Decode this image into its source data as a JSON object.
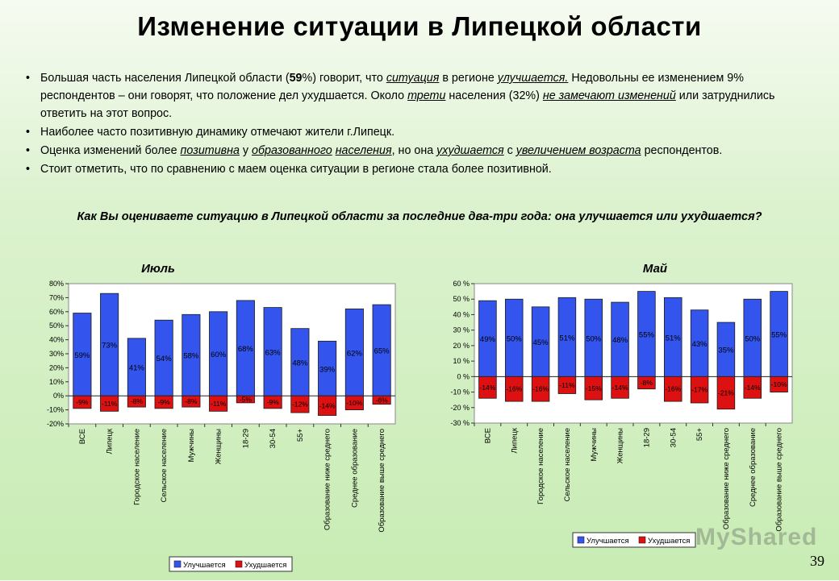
{
  "title": "Изменение ситуации в Липецкой области",
  "bullets": [
    {
      "p1": "Большая часть населения Липецкой области (",
      "b1": "59",
      "p2": "%) говорит, что ",
      "u1": "ситуация",
      "p3": " в регионе ",
      "u2": "улучшается.",
      "p4": " Недовольны ее изменением 9% респондентов – они говорят, что положение дел ухудшается. Около ",
      "u3": "трети",
      "p5": " населения (32%) ",
      "u4": "не замечают изменений",
      "p6": " или затруднились ответить на этот вопрос."
    },
    {
      "text": "Наиболее часто позитивную динамику отмечают жители г.Липецк."
    },
    {
      "p1": "Оценка изменений более ",
      "u1": "позитивна",
      "p2": " у  ",
      "u2": "образованного",
      "p3": " ",
      "u3": "населения",
      "p4": ", но она ",
      "u4": "ухудшается",
      "p5": " с ",
      "u5": "увеличением возраста",
      "p6": " респондентов."
    },
    {
      "text": "Стоит отметить, что по сравнению с маем оценка ситуации в регионе стала более позитивной."
    }
  ],
  "question": "Как Вы оцениваете ситуацию в Липецкой области за последние два-три года: она улучшается или ухудшается?",
  "colors": {
    "improving": "#3355ee",
    "worsening": "#dd1111"
  },
  "chart_data": [
    {
      "type": "bar",
      "title": "Июль",
      "categories": [
        "ВСЕ",
        "Липецк",
        "Городское население",
        "Сельское население",
        "Мужчины",
        "Женщины",
        "18-29",
        "30-54",
        "55+",
        "Образование ниже среднего",
        "Среднее образование",
        "Образование выше среднего"
      ],
      "series": [
        {
          "name": "Улучшается",
          "values": [
            59,
            73,
            41,
            54,
            58,
            60,
            68,
            63,
            48,
            39,
            62,
            65
          ],
          "labels": [
            "59%",
            "73%",
            "41%",
            "54%",
            "58%",
            "60%",
            "68%",
            "63%",
            "48%",
            "39%",
            "62%",
            "65%"
          ]
        },
        {
          "name": "Ухудшается",
          "values": [
            -9,
            -11,
            -8,
            -9,
            -8,
            -11,
            -5,
            -9,
            -12,
            -14,
            -10,
            -6
          ],
          "labels": [
            "-9%",
            "-11%",
            "-8%",
            "-9%",
            "-8%",
            "-11%",
            "-5%",
            "-9%",
            "-12%",
            "-14%",
            "-10%",
            "-6%"
          ]
        }
      ],
      "ylim": [
        -20,
        80
      ],
      "yticks": [
        "-20%",
        "-10%",
        "0%",
        "10%",
        "20%",
        "30%",
        "40%",
        "50%",
        "60%",
        "70%",
        "80%"
      ],
      "legend": "bottom"
    },
    {
      "type": "bar",
      "title": "Май",
      "categories": [
        "ВСЕ",
        "Липецк",
        "Городское население",
        "Сельское население",
        "Мужчины",
        "Женщины",
        "18-29",
        "30-54",
        "55+",
        "Образование ниже среднего",
        "Среднее образование",
        "Образование выше среднего"
      ],
      "series": [
        {
          "name": "Улучшается",
          "values": [
            49,
            50,
            45,
            51,
            50,
            48,
            55,
            51,
            43,
            35,
            50,
            55
          ],
          "labels": [
            "49%",
            "50%",
            "45%",
            "51%",
            "50%",
            "48%",
            "55%",
            "51%",
            "43%",
            "35%",
            "50%",
            "55%"
          ]
        },
        {
          "name": "Ухудшается",
          "values": [
            -14,
            -16,
            -16,
            -11,
            -15,
            -14,
            -8,
            -16,
            -17,
            -21,
            -14,
            -10
          ],
          "labels": [
            "-14%",
            "-16%",
            "-16%",
            "-11%",
            "-15%",
            "-14%",
            "-8%",
            "-16%",
            "-17%",
            "-21%",
            "-14%",
            "-10%"
          ]
        }
      ],
      "ylim": [
        -30,
        60
      ],
      "yticks": [
        "-30 %",
        "-20 %",
        "-10 %",
        "0 %",
        "10 %",
        "20 %",
        "30 %",
        "40 %",
        "50 %",
        "60 %"
      ],
      "legend": "bottom"
    }
  ],
  "page_number": "39",
  "watermark": "MyShared"
}
